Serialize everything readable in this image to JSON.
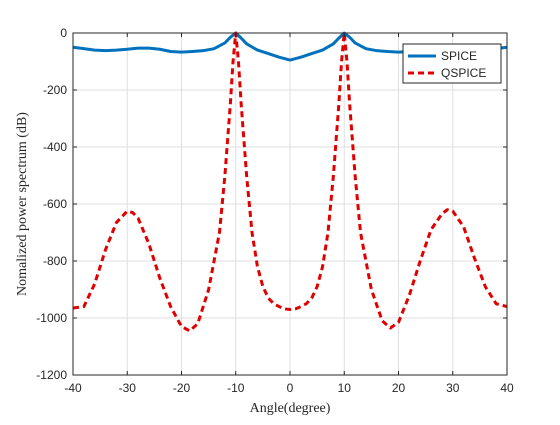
{
  "chart_data": {
    "type": "line",
    "title": "",
    "xlabel": "Angle(degree)",
    "ylabel": "Nomalized power spectrum (dB)",
    "xlim": [
      -40,
      40
    ],
    "ylim": [
      -1200,
      0
    ],
    "xticks": [
      -40,
      -30,
      -20,
      -10,
      0,
      10,
      20,
      30,
      40
    ],
    "yticks": [
      0,
      -200,
      -400,
      -600,
      -800,
      -1000,
      -1200
    ],
    "grid": true,
    "legend_position": "top-right",
    "series": [
      {
        "name": "SPICE",
        "color": "#0072BD",
        "style": "solid",
        "points": [
          [
            -40,
            -50
          ],
          [
            -38,
            -55
          ],
          [
            -36,
            -60
          ],
          [
            -34,
            -62
          ],
          [
            -32,
            -60
          ],
          [
            -30,
            -57
          ],
          [
            -28,
            -53
          ],
          [
            -26,
            -53
          ],
          [
            -24,
            -57
          ],
          [
            -22,
            -65
          ],
          [
            -20,
            -67
          ],
          [
            -18,
            -65
          ],
          [
            -16,
            -62
          ],
          [
            -14,
            -55
          ],
          [
            -12,
            -35
          ],
          [
            -11,
            -15
          ],
          [
            -10,
            0
          ],
          [
            -9,
            -18
          ],
          [
            -8,
            -38
          ],
          [
            -6,
            -60
          ],
          [
            -4,
            -72
          ],
          [
            -2,
            -85
          ],
          [
            0,
            -95
          ],
          [
            2,
            -85
          ],
          [
            4,
            -72
          ],
          [
            6,
            -60
          ],
          [
            8,
            -38
          ],
          [
            9,
            -18
          ],
          [
            10,
            0
          ],
          [
            11,
            -15
          ],
          [
            12,
            -35
          ],
          [
            14,
            -55
          ],
          [
            16,
            -62
          ],
          [
            18,
            -65
          ],
          [
            20,
            -67
          ],
          [
            22,
            -65
          ],
          [
            24,
            -57
          ],
          [
            26,
            -53
          ],
          [
            28,
            -53
          ],
          [
            30,
            -57
          ],
          [
            32,
            -60
          ],
          [
            34,
            -62
          ],
          [
            36,
            -60
          ],
          [
            38,
            -55
          ],
          [
            40,
            -50
          ]
        ]
      },
      {
        "name": "QSPICE",
        "color": "#E00000",
        "style": "dashed",
        "points": [
          [
            -40,
            -965
          ],
          [
            -38,
            -960
          ],
          [
            -36,
            -880
          ],
          [
            -34,
            -760
          ],
          [
            -32,
            -665
          ],
          [
            -30,
            -625
          ],
          [
            -29,
            -630
          ],
          [
            -28,
            -650
          ],
          [
            -26,
            -740
          ],
          [
            -24,
            -860
          ],
          [
            -22,
            -960
          ],
          [
            -20,
            -1030
          ],
          [
            -18.5,
            -1045
          ],
          [
            -17,
            -1020
          ],
          [
            -15,
            -900
          ],
          [
            -13,
            -700
          ],
          [
            -12,
            -500
          ],
          [
            -11,
            -250
          ],
          [
            -10.5,
            -100
          ],
          [
            -10,
            0
          ],
          [
            -9.5,
            -100
          ],
          [
            -9,
            -250
          ],
          [
            -8,
            -500
          ],
          [
            -7,
            -700
          ],
          [
            -6,
            -820
          ],
          [
            -5,
            -890
          ],
          [
            -4,
            -930
          ],
          [
            -3,
            -950
          ],
          [
            -2,
            -960
          ],
          [
            -1,
            -968
          ],
          [
            0,
            -970
          ],
          [
            1,
            -968
          ],
          [
            2,
            -960
          ],
          [
            3,
            -950
          ],
          [
            4,
            -930
          ],
          [
            5,
            -890
          ],
          [
            6,
            -820
          ],
          [
            7,
            -700
          ],
          [
            8,
            -500
          ],
          [
            9,
            -250
          ],
          [
            9.5,
            -100
          ],
          [
            10,
            0
          ],
          [
            10.5,
            -100
          ],
          [
            11,
            -250
          ],
          [
            12,
            -500
          ],
          [
            13,
            -700
          ],
          [
            15,
            -900
          ],
          [
            17,
            -1010
          ],
          [
            18.5,
            -1035
          ],
          [
            20,
            -1015
          ],
          [
            22,
            -920
          ],
          [
            24,
            -800
          ],
          [
            26,
            -690
          ],
          [
            28,
            -635
          ],
          [
            29,
            -620
          ],
          [
            30,
            -625
          ],
          [
            32,
            -680
          ],
          [
            34,
            -790
          ],
          [
            36,
            -890
          ],
          [
            38,
            -950
          ],
          [
            40,
            -960
          ]
        ]
      }
    ]
  }
}
